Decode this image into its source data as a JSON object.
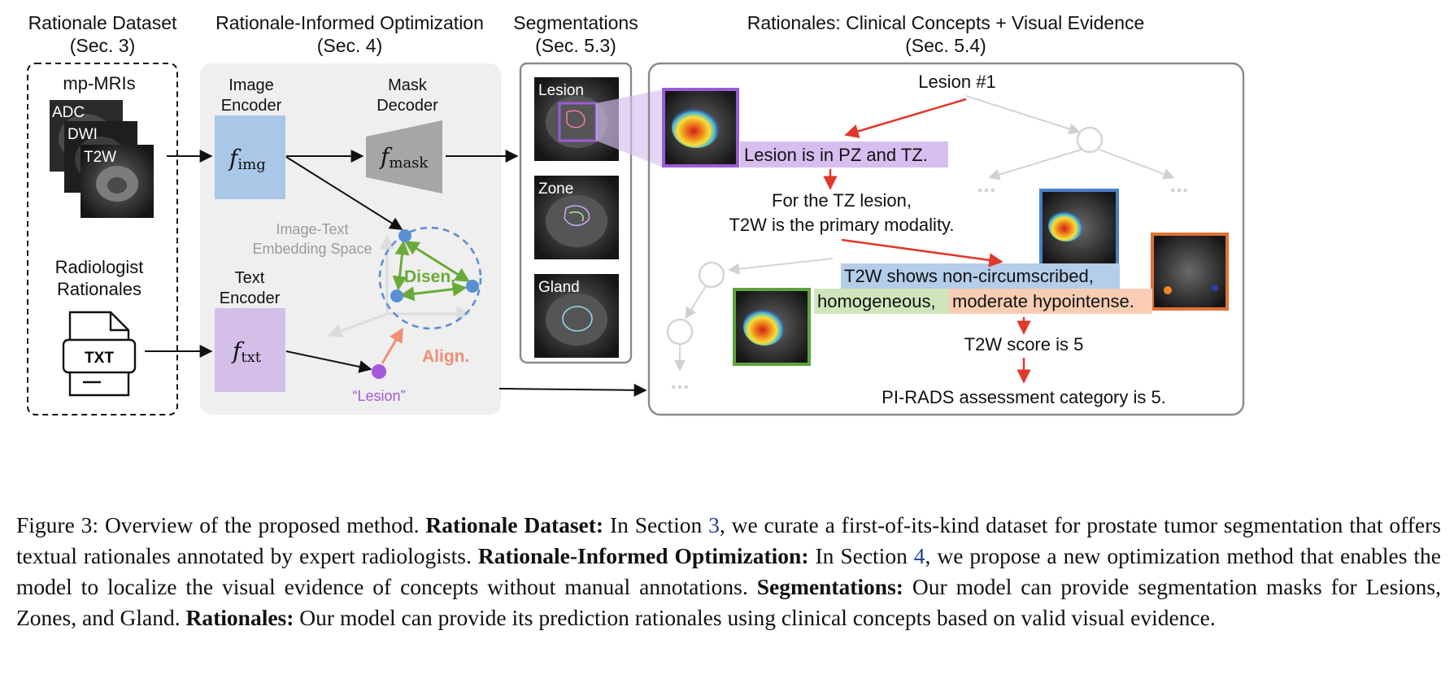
{
  "headers": {
    "dataset_title": "Rationale Dataset",
    "dataset_sec": "(Sec. 3)",
    "optim_title": "Rationale-Informed Optimization",
    "optim_sec": "(Sec. 4)",
    "seg_title": "Segmentations",
    "seg_sec": "(Sec. 5.3)",
    "rat_title": "Rationales: Clinical Concepts + Visual Evidence",
    "rat_sec": "(Sec. 5.4)"
  },
  "dataset": {
    "mri_title": "mp-MRIs",
    "slices": [
      "ADC",
      "DWI",
      "T2W"
    ],
    "rationales_l1": "Radiologist",
    "rationales_l2": "Rationales",
    "file_label": "TXT"
  },
  "optimization": {
    "img_enc_l1": "Image",
    "img_enc_l2": "Encoder",
    "mask_dec_l1": "Mask",
    "mask_dec_l2": "Decoder",
    "txt_enc_l1": "Text",
    "txt_enc_l2": "Encoder",
    "f_img": "f",
    "f_img_sub": "img",
    "f_mask": "f",
    "f_mask_sub": "mask",
    "f_txt": "f",
    "f_txt_sub": "txt",
    "space_l1": "Image-Text",
    "space_l2": "Embedding Space",
    "disen": "Disen.",
    "align": "Align.",
    "lesion_quote": "“Lesion”"
  },
  "segmentations": [
    "Lesion",
    "Zone",
    "Gland"
  ],
  "rationales": {
    "root": "Lesion #1",
    "n1": "Lesion is in PZ and TZ.",
    "n2_l1": "For the TZ lesion,",
    "n2_l2": "T2W is the primary modality.",
    "n3_l1": "T2W shows non-circumscribed,",
    "n3_l2a": "homogeneous,",
    "n3_l2b": "moderate hypointense.",
    "n4": "T2W score is 5",
    "n5": "PI-RADS assessment category is 5.",
    "ellipsis": "..."
  },
  "caption": {
    "fig_label": "Figure 3:",
    "intro": "Overview of the proposed method.",
    "b1": "Rationale Dataset:",
    "t1a": "In Section",
    "ref1": "3",
    "t1b": ", we curate a first-of-its-kind dataset for prostate tumor segmentation that offers textual rationales annotated by expert radiologists.",
    "b2": "Rationale-Informed Optimization:",
    "t2a": "In Section",
    "ref2": "4",
    "t2b": ", we propose a new optimization method that enables the model to localize the visual evidence of concepts without manual annotations.",
    "b3": "Segmentations:",
    "t3": "Our model can provide segmentation masks for Lesions, Zones, and Gland.",
    "b4": "Rationales:",
    "t4": "Our model can provide its prediction rationales using clinical concepts based on valid visual evidence."
  },
  "colors": {
    "img_encoder": "#a9c7e6",
    "txt_encoder": "#d4bfe8",
    "mask_decoder": "#a6a6a6",
    "panel_gray": "#efefef",
    "disen_green": "#6aaa3a",
    "align_salmon": "#ef8f76",
    "embed_blue": "#5b8fd3",
    "lesion_purple": "#a259d9",
    "red_arrow": "#e2372b",
    "hl_purple": "#d6bff0",
    "hl_blue": "#b4cde9",
    "hl_green": "#cfe6bd",
    "hl_orange": "#f8cdb3",
    "frame_purple": "#9a5cd6",
    "frame_blue": "#4a80c8",
    "frame_green": "#5ea33f",
    "frame_orange": "#dd7434"
  }
}
